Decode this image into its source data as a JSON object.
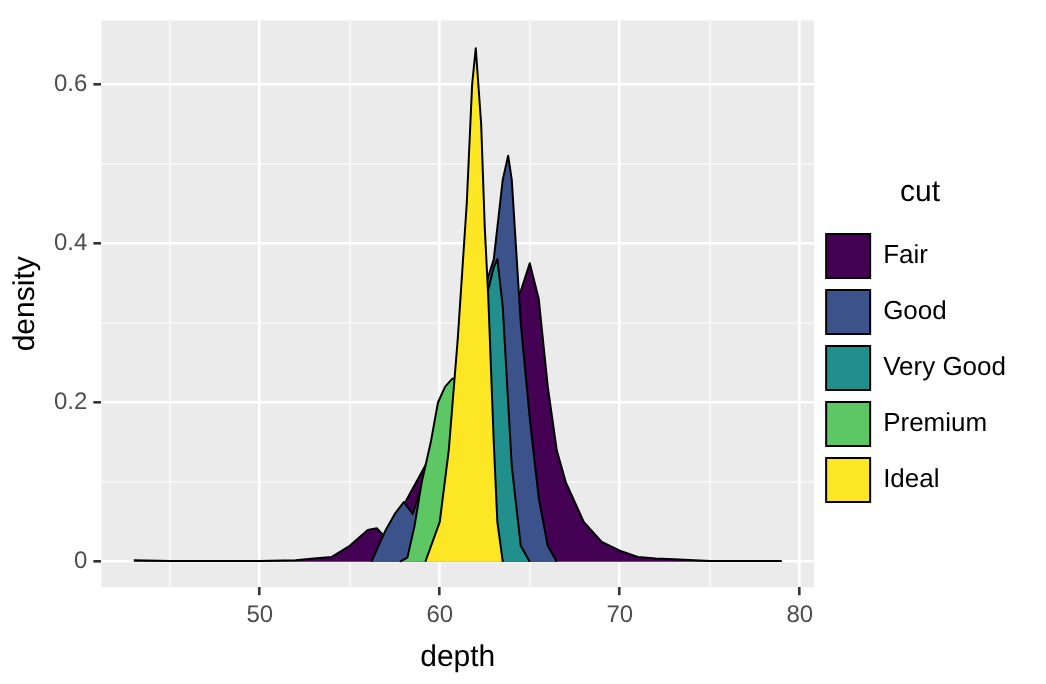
{
  "chart_data": {
    "type": "area",
    "xlabel": "depth",
    "ylabel": "density",
    "legend_title": "cut",
    "legend": "right",
    "grid": true,
    "xlim": [
      41.2,
      80.8
    ],
    "ylim": [
      -0.032,
      0.68
    ],
    "xticks": [
      {
        "value": 45,
        "label": null
      },
      50,
      {
        "value": 55,
        "label": null
      },
      60,
      {
        "value": 65,
        "label": null
      },
      70,
      {
        "value": 75,
        "label": null
      },
      80
    ],
    "yticks": [
      0,
      {
        "value": 0.1,
        "label": null
      },
      0.2,
      {
        "value": 0.3,
        "label": null
      },
      0.4,
      {
        "value": 0.5,
        "label": null
      },
      0.6
    ],
    "series": [
      {
        "name": "Fair",
        "color": "#440154",
        "x": [
          43,
          45,
          50,
          52,
          53,
          54,
          55,
          56,
          56.5,
          57,
          57.5,
          58,
          58.5,
          59,
          60,
          61,
          62,
          63,
          63.5,
          64,
          64.5,
          65,
          65.5,
          66,
          66.5,
          67,
          68,
          69,
          70,
          71,
          72,
          73,
          75,
          79
        ],
        "values": [
          0.002,
          0.001,
          0.001,
          0.002,
          0.004,
          0.006,
          0.02,
          0.04,
          0.042,
          0.03,
          null,
          null,
          null,
          null,
          null,
          null,
          null,
          null,
          null,
          null,
          0.34,
          0.375,
          0.33,
          0.22,
          0.14,
          0.1,
          0.05,
          0.025,
          0.014,
          0.006,
          0.004,
          0.003,
          0.001,
          0.001
        ]
      },
      {
        "name": "Good",
        "color": "#3b528b",
        "x": [
          56.2,
          57,
          57.5,
          58,
          58.5,
          59,
          60,
          61,
          62,
          62.5,
          63,
          63.5,
          63.8,
          64,
          64.5,
          65,
          65.5,
          66,
          66.5
        ],
        "values": [
          0,
          0.04,
          0.06,
          0.075,
          0.06,
          null,
          null,
          null,
          null,
          null,
          0.38,
          0.48,
          0.51,
          0.48,
          0.3,
          0.18,
          0.08,
          0.02,
          0
        ]
      },
      {
        "name": "Very Good",
        "color": "#21908c",
        "x": [
          59,
          60,
          61,
          62,
          62.5,
          63,
          63.2,
          63.5,
          64,
          64.5,
          65
        ],
        "values": [
          0,
          null,
          null,
          null,
          null,
          0.37,
          0.38,
          0.32,
          0.12,
          0.02,
          0
        ]
      },
      {
        "name": "Premium",
        "color": "#5dc863",
        "x": [
          57.8,
          58.2,
          58.6,
          59,
          59.5,
          59.9,
          60.3,
          60.7,
          61,
          61.5,
          62,
          62.5,
          63,
          63.5
        ],
        "values": [
          0,
          0.005,
          0.045,
          0.1,
          0.15,
          0.2,
          0.22,
          0.23,
          0.23,
          null,
          null,
          null,
          null,
          0
        ]
      },
      {
        "name": "Ideal",
        "color": "#fde725",
        "x": [
          59.2,
          60,
          60.5,
          61,
          61.5,
          61.8,
          62,
          62.3,
          62.5,
          62.7,
          63,
          63.2,
          63.5
        ],
        "values": [
          0,
          0.05,
          0.14,
          0.28,
          0.45,
          0.6,
          0.645,
          0.55,
          0.42,
          0.33,
          0.15,
          0.05,
          0
        ]
      }
    ]
  }
}
